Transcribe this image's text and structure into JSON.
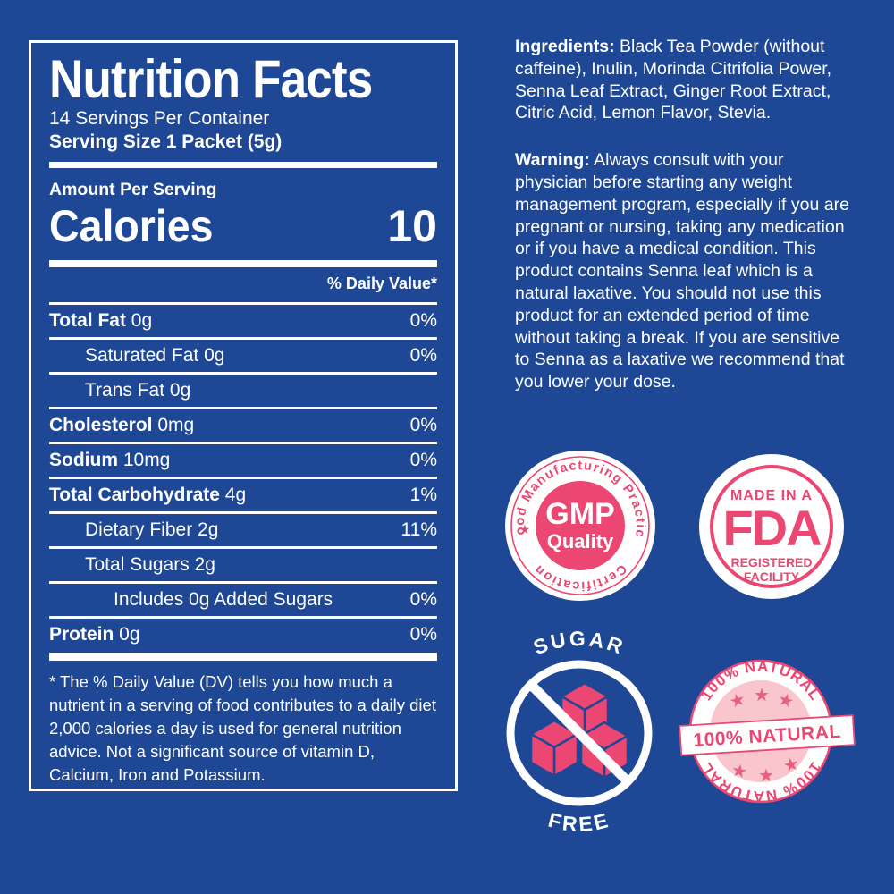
{
  "colors": {
    "blue": "#1E4796",
    "pink": "#EC4672",
    "light_pink": "#F9C6CE",
    "star_pink": "#EA5F7B",
    "white": "#FFFFFF"
  },
  "nutrition": {
    "title": "Nutrition Facts",
    "servings_per_container": "14 Servings Per Container",
    "serving_size": "Serving Size 1 Packet (5g)",
    "amount_per_serving": "Amount Per Serving",
    "calories_label": "Calories",
    "calories_value": "10",
    "daily_value_header": "% Daily Value*",
    "rows": [
      {
        "label": "Total Fat",
        "amount": "0g",
        "dv": "0%",
        "bold": true,
        "indent": 0
      },
      {
        "label": "Saturated Fat",
        "amount": "0g",
        "dv": "0%",
        "bold": false,
        "indent": 1
      },
      {
        "label": "Trans Fat",
        "amount": "0g",
        "dv": "",
        "bold": false,
        "indent": 1
      },
      {
        "label": "Cholesterol",
        "amount": "0mg",
        "dv": "0%",
        "bold": true,
        "indent": 0
      },
      {
        "label": "Sodium",
        "amount": "10mg",
        "dv": "0%",
        "bold": true,
        "indent": 0
      },
      {
        "label": "Total Carbohydrate",
        "amount": "4g",
        "dv": "1%",
        "bold": true,
        "indent": 0
      },
      {
        "label": "Dietary Fiber",
        "amount": "2g",
        "dv": "11%",
        "bold": false,
        "indent": 1
      },
      {
        "label": "Total Sugars",
        "amount": "2g",
        "dv": "",
        "bold": false,
        "indent": 1
      },
      {
        "label": "Includes 0g Added Sugars",
        "amount": "",
        "dv": "0%",
        "bold": false,
        "indent": 2
      },
      {
        "label": "Protein",
        "amount": "0g",
        "dv": "0%",
        "bold": true,
        "indent": 0
      }
    ],
    "footnote": "* The % Daily Value (DV) tells you how much a nutrient in a serving of food contributes to a daily diet 2,000 calories a day is used for general nutrition advice. Not a significant source of vitamin D, Calcium, Iron and Potassium."
  },
  "info": {
    "ingredients_label": "Ingredients:",
    "ingredients_text": " Black Tea Powder (without caffeine), Inulin, Morinda Citrifolia Power, Senna Leaf Extract, Ginger Root Extract, Citric Acid, Lemon Flavor, Stevia.",
    "warning_label": "Warning:",
    "warning_text": " Always consult with your physician before starting any weight management program, especially if you are pregnant or nursing, taking any medication or if you have a medical condition. This product contains Senna leaf which is a natural laxative. You should not use this product for an extended period of time without taking a break. If you are sensitive to Senna as a laxative we recommend that you lower your dose."
  },
  "badges": {
    "gmp": {
      "arc_top": "Good Manufacturing Practice",
      "arc_bottom": "Certification",
      "line1": "GMP",
      "line2": "Quality",
      "star": "★"
    },
    "fda": {
      "top": "MADE IN A",
      "logo": "FDA",
      "bottom1": "REGISTERED",
      "bottom2": "FACILITY"
    },
    "sugar_free": {
      "top": "SUGAR",
      "bottom": "FREE"
    },
    "natural": {
      "arc_top": "100% NATURAL",
      "banner": "100% NATURAL",
      "arc_bottom": "100% NATURAL",
      "star": "★"
    }
  }
}
